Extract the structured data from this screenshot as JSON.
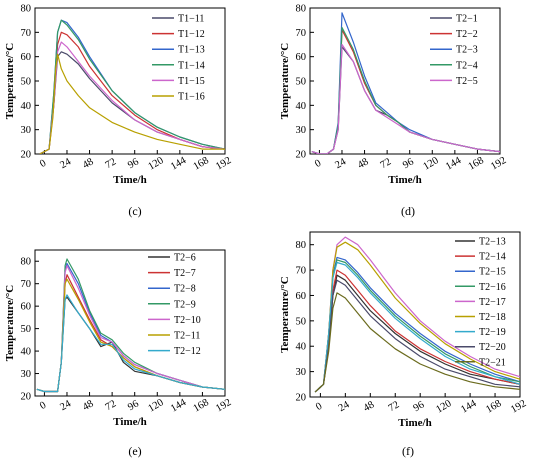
{
  "chart_data": [
    {
      "type": "line",
      "panel_label": "(c)",
      "xlabel": "Time/h",
      "ylabel": "Temperature/°C",
      "xlim": [
        -10,
        192
      ],
      "ylim": [
        20,
        80
      ],
      "xticks": [
        "0",
        "24",
        "48",
        "72",
        "96",
        "120",
        "144",
        "168",
        "192"
      ],
      "yticks": [
        "20",
        "30",
        "40",
        "50",
        "60",
        "70",
        "80"
      ],
      "legend_position": "top-right",
      "series": [
        {
          "name": "T1−11",
          "color": "#4a4a6a",
          "x": [
            -5,
            5,
            10,
            14,
            18,
            24,
            36,
            48,
            72,
            96,
            120,
            144,
            168,
            192
          ],
          "y": [
            20,
            22,
            40,
            60,
            62,
            61,
            57,
            51,
            41,
            34,
            29,
            26,
            23,
            22
          ]
        },
        {
          "name": "T1−12",
          "color": "#cc3333",
          "x": [
            -5,
            5,
            10,
            14,
            18,
            24,
            36,
            48,
            72,
            96,
            120,
            144,
            168,
            192
          ],
          "y": [
            20,
            22,
            40,
            65,
            70,
            69,
            64,
            56,
            44,
            36,
            30,
            26,
            23,
            22
          ]
        },
        {
          "name": "T1−13",
          "color": "#3366cc",
          "x": [
            -5,
            5,
            10,
            14,
            18,
            24,
            36,
            48,
            72,
            96,
            120,
            144,
            168,
            192
          ],
          "y": [
            20,
            22,
            45,
            70,
            75,
            74,
            68,
            60,
            46,
            37,
            31,
            27,
            24,
            22
          ]
        },
        {
          "name": "T1−14",
          "color": "#339966",
          "x": [
            -5,
            5,
            10,
            14,
            18,
            24,
            36,
            48,
            72,
            96,
            120,
            144,
            168,
            192
          ],
          "y": [
            20,
            22,
            45,
            70,
            75,
            73,
            67,
            59,
            46,
            37,
            31,
            27,
            24,
            22
          ]
        },
        {
          "name": "T1−15",
          "color": "#cc66cc",
          "x": [
            -5,
            5,
            10,
            14,
            18,
            24,
            36,
            48,
            72,
            96,
            120,
            144,
            168,
            192
          ],
          "y": [
            20,
            22,
            40,
            62,
            66,
            64,
            58,
            52,
            42,
            34,
            29,
            26,
            23,
            22
          ]
        },
        {
          "name": "T1−16",
          "color": "#b8a000",
          "x": [
            -5,
            5,
            9,
            12,
            14,
            18,
            24,
            36,
            48,
            72,
            96,
            120,
            144,
            168,
            192
          ],
          "y": [
            20,
            22,
            35,
            55,
            61,
            55,
            50,
            44,
            39,
            33,
            29,
            26,
            24,
            22,
            22
          ]
        }
      ]
    },
    {
      "type": "line",
      "panel_label": "(d)",
      "xlabel": "Time/h",
      "ylabel": "Temperature/°C",
      "xlim": [
        -10,
        192
      ],
      "ylim": [
        20,
        80
      ],
      "xticks": [
        "0",
        "24",
        "48",
        "72",
        "96",
        "120",
        "144",
        "168",
        "192"
      ],
      "yticks": [
        "20",
        "30",
        "40",
        "50",
        "60",
        "70",
        "80"
      ],
      "legend_position": "top-right",
      "series": [
        {
          "name": "T2−1",
          "color": "#4a4a6a",
          "x": [
            -8,
            0,
            8,
            15,
            20,
            24,
            36,
            48,
            60,
            72,
            84,
            96,
            120,
            144,
            168,
            192
          ],
          "y": [
            21,
            20,
            20,
            22,
            30,
            64,
            58,
            46,
            38,
            36,
            33,
            29,
            26,
            24,
            22,
            21
          ]
        },
        {
          "name": "T2−2",
          "color": "#cc3333",
          "x": [
            -8,
            0,
            8,
            15,
            20,
            24,
            36,
            48,
            60,
            72,
            84,
            96,
            120,
            144,
            168,
            192
          ],
          "y": [
            21,
            20,
            20,
            22,
            32,
            71,
            62,
            49,
            40,
            36,
            33,
            29,
            26,
            24,
            22,
            21
          ]
        },
        {
          "name": "T2−3",
          "color": "#3366cc",
          "x": [
            -8,
            0,
            8,
            15,
            20,
            24,
            36,
            48,
            60,
            72,
            84,
            96,
            120,
            144,
            168,
            192
          ],
          "y": [
            21,
            20,
            20,
            22,
            33,
            78,
            66,
            52,
            41,
            37,
            33,
            30,
            26,
            24,
            22,
            21
          ]
        },
        {
          "name": "T2−4",
          "color": "#339966",
          "x": [
            -8,
            0,
            8,
            15,
            20,
            24,
            36,
            48,
            60,
            72,
            84,
            96,
            120,
            144,
            168,
            192
          ],
          "y": [
            21,
            20,
            20,
            22,
            32,
            72,
            63,
            50,
            40,
            36,
            33,
            29,
            26,
            24,
            22,
            21
          ]
        },
        {
          "name": "T2−5",
          "color": "#cc66cc",
          "x": [
            -8,
            0,
            8,
            15,
            20,
            24,
            36,
            48,
            60,
            72,
            84,
            96,
            120,
            144,
            168,
            192
          ],
          "y": [
            21,
            20,
            20,
            22,
            30,
            65,
            58,
            46,
            38,
            35,
            32,
            29,
            26,
            24,
            22,
            21
          ]
        }
      ]
    },
    {
      "type": "line",
      "panel_label": "(e)",
      "xlabel": "Time/h",
      "ylabel": "Temperature/°C",
      "xlim": [
        -10,
        192
      ],
      "ylim": [
        20,
        85
      ],
      "xticks": [
        "0",
        "24",
        "48",
        "72",
        "96",
        "120",
        "144",
        "168",
        "192"
      ],
      "yticks": [
        "20",
        "30",
        "40",
        "50",
        "60",
        "70",
        "80"
      ],
      "legend_position": "top-right",
      "series": [
        {
          "name": "T2−6",
          "color": "#333333",
          "x": [
            -8,
            0,
            8,
            14,
            18,
            22,
            24,
            36,
            48,
            60,
            72,
            84,
            96,
            120,
            144,
            168,
            192
          ],
          "y": [
            23,
            22,
            22,
            22,
            35,
            63,
            64,
            57,
            50,
            42,
            44,
            35,
            31,
            29,
            26,
            24,
            23
          ]
        },
        {
          "name": "T2−7",
          "color": "#cc3333",
          "x": [
            -8,
            0,
            8,
            14,
            18,
            22,
            24,
            36,
            48,
            60,
            72,
            84,
            96,
            120,
            144,
            168,
            192
          ],
          "y": [
            23,
            22,
            22,
            22,
            35,
            70,
            74,
            64,
            54,
            45,
            42,
            37,
            33,
            29,
            26,
            24,
            23
          ]
        },
        {
          "name": "T2−8",
          "color": "#3366cc",
          "x": [
            -8,
            0,
            8,
            14,
            18,
            22,
            24,
            36,
            48,
            60,
            72,
            84,
            96,
            120,
            144,
            168,
            192
          ],
          "y": [
            23,
            22,
            22,
            22,
            35,
            76,
            79,
            70,
            57,
            47,
            44,
            38,
            34,
            30,
            27,
            24,
            23
          ]
        },
        {
          "name": "T2−9",
          "color": "#339966",
          "x": [
            -8,
            0,
            8,
            14,
            18,
            22,
            24,
            36,
            48,
            60,
            72,
            84,
            96,
            120,
            144,
            168,
            192
          ],
          "y": [
            23,
            22,
            22,
            22,
            35,
            78,
            81,
            72,
            58,
            48,
            45,
            39,
            35,
            30,
            27,
            24,
            23
          ]
        },
        {
          "name": "T2−10",
          "color": "#cc66cc",
          "x": [
            -8,
            0,
            8,
            14,
            18,
            22,
            24,
            36,
            48,
            60,
            72,
            84,
            96,
            120,
            144,
            168,
            192
          ],
          "y": [
            23,
            22,
            22,
            22,
            35,
            75,
            78,
            68,
            56,
            46,
            44,
            38,
            34,
            30,
            27,
            24,
            23
          ]
        },
        {
          "name": "T2−11",
          "color": "#b8a000",
          "x": [
            -8,
            0,
            8,
            14,
            18,
            22,
            24,
            36,
            48,
            60,
            72,
            84,
            96,
            120,
            144,
            168,
            192
          ],
          "y": [
            23,
            22,
            22,
            22,
            35,
            70,
            72,
            63,
            53,
            44,
            42,
            37,
            33,
            29,
            26,
            24,
            23
          ]
        },
        {
          "name": "T2−12",
          "color": "#33aacc",
          "x": [
            -8,
            0,
            8,
            14,
            18,
            22,
            24,
            36,
            48,
            60,
            72,
            84,
            96,
            120,
            144,
            168,
            192
          ],
          "y": [
            23,
            22,
            22,
            22,
            35,
            63,
            65,
            57,
            50,
            43,
            43,
            36,
            32,
            29,
            26,
            24,
            23
          ]
        }
      ]
    },
    {
      "type": "line",
      "panel_label": "(f)",
      "xlabel": "Time/h",
      "ylabel": "Temperature/°C",
      "xlim": [
        -10,
        192
      ],
      "ylim": [
        20,
        85
      ],
      "xticks": [
        "0",
        "24",
        "48",
        "72",
        "96",
        "120",
        "144",
        "168",
        "192"
      ],
      "yticks": [
        "20",
        "30",
        "40",
        "50",
        "60",
        "70",
        "80"
      ],
      "legend_position": "top-right",
      "series": [
        {
          "name": "T2−13",
          "color": "#333333",
          "x": [
            -5,
            3,
            8,
            12,
            16,
            24,
            36,
            48,
            72,
            96,
            120,
            144,
            168,
            192
          ],
          "y": [
            22,
            25,
            40,
            60,
            68,
            66,
            60,
            54,
            45,
            38,
            33,
            29,
            27,
            25
          ]
        },
        {
          "name": "T2−14",
          "color": "#cc3333",
          "x": [
            -5,
            3,
            8,
            12,
            16,
            24,
            36,
            48,
            72,
            96,
            120,
            144,
            168,
            192
          ],
          "y": [
            22,
            25,
            40,
            62,
            70,
            68,
            62,
            56,
            46,
            39,
            34,
            30,
            27,
            25
          ]
        },
        {
          "name": "T2−15",
          "color": "#3366cc",
          "x": [
            -5,
            3,
            8,
            12,
            16,
            24,
            36,
            48,
            72,
            96,
            120,
            144,
            168,
            192
          ],
          "y": [
            22,
            25,
            45,
            68,
            75,
            74,
            69,
            63,
            53,
            45,
            38,
            33,
            29,
            26
          ]
        },
        {
          "name": "T2−16",
          "color": "#339966",
          "x": [
            -5,
            3,
            8,
            12,
            16,
            24,
            36,
            48,
            72,
            96,
            120,
            144,
            168,
            192
          ],
          "y": [
            22,
            25,
            45,
            67,
            74,
            73,
            68,
            62,
            52,
            44,
            37,
            32,
            28,
            26
          ]
        },
        {
          "name": "T2−17",
          "color": "#cc66cc",
          "x": [
            -5,
            3,
            8,
            12,
            16,
            24,
            36,
            48,
            72,
            96,
            120,
            144,
            168,
            192
          ],
          "y": [
            22,
            25,
            45,
            70,
            80,
            83,
            80,
            74,
            61,
            50,
            42,
            36,
            31,
            28
          ]
        },
        {
          "name": "T2−18",
          "color": "#b8a000",
          "x": [
            -5,
            3,
            8,
            12,
            16,
            24,
            36,
            48,
            72,
            96,
            120,
            144,
            168,
            192
          ],
          "y": [
            22,
            25,
            45,
            70,
            79,
            81,
            78,
            72,
            59,
            49,
            41,
            35,
            30,
            27
          ]
        },
        {
          "name": "T2−19",
          "color": "#33aacc",
          "x": [
            -5,
            3,
            8,
            12,
            16,
            24,
            36,
            48,
            72,
            96,
            120,
            144,
            168,
            192
          ],
          "y": [
            22,
            25,
            45,
            67,
            73,
            72,
            67,
            61,
            51,
            43,
            36,
            31,
            28,
            25
          ]
        },
        {
          "name": "T2−20",
          "color": "#4a4a6a",
          "x": [
            -5,
            3,
            8,
            12,
            16,
            24,
            36,
            48,
            72,
            96,
            120,
            144,
            168,
            192
          ],
          "y": [
            22,
            25,
            40,
            60,
            66,
            64,
            58,
            52,
            43,
            36,
            31,
            28,
            25,
            24
          ]
        },
        {
          "name": "T2−21",
          "color": "#6b6b1e",
          "x": [
            -5,
            3,
            8,
            12,
            16,
            24,
            36,
            48,
            72,
            96,
            120,
            144,
            168,
            192
          ],
          "y": [
            22,
            25,
            38,
            55,
            61,
            59,
            53,
            47,
            39,
            33,
            29,
            26,
            24,
            23
          ]
        }
      ]
    }
  ]
}
